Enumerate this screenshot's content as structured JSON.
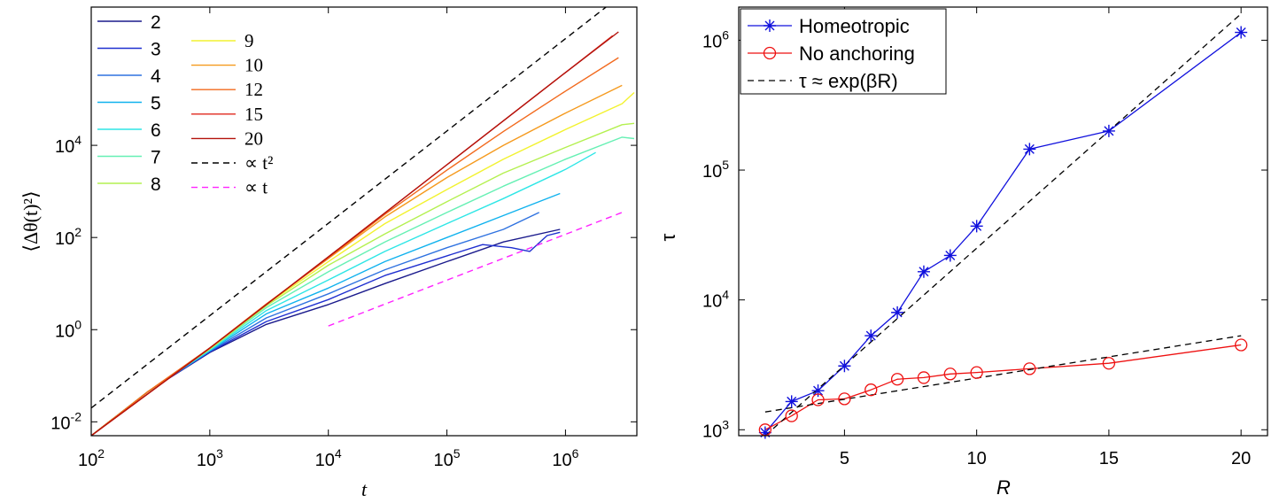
{
  "chart_data": [
    {
      "type": "line",
      "xlabel": "t",
      "ylabel": "⟨Δθ(t)²⟩",
      "xscale": "log",
      "yscale": "log",
      "xlim": [
        100,
        4000000
      ],
      "ylim": [
        0.005,
        10000000
      ],
      "x_ticks": [
        {
          "value": 100,
          "base": "10",
          "exp": "2"
        },
        {
          "value": 1000,
          "base": "10",
          "exp": "3"
        },
        {
          "value": 10000,
          "base": "10",
          "exp": "4"
        },
        {
          "value": 100000,
          "base": "10",
          "exp": "5"
        },
        {
          "value": 1000000,
          "base": "10",
          "exp": "6"
        }
      ],
      "y_ticks": [
        {
          "value": 0.01,
          "base": "10",
          "exp": "-2"
        },
        {
          "value": 1,
          "base": "10",
          "exp": "0"
        },
        {
          "value": 100,
          "base": "10",
          "exp": "2"
        },
        {
          "value": 10000,
          "base": "10",
          "exp": "4"
        }
      ],
      "legend_placement": "top-left",
      "grid": false,
      "series": [
        {
          "name": "2",
          "color": "#1a1a8c",
          "x": [
            100,
            300,
            1000,
            3000,
            10000,
            30000,
            100000,
            300000,
            900000
          ],
          "y": [
            0.005,
            0.045,
            0.32,
            1.3,
            3.5,
            10,
            30,
            80,
            150
          ]
        },
        {
          "name": "3",
          "color": "#1f2fd0",
          "x": [
            100,
            300,
            1000,
            3000,
            10000,
            30000,
            100000,
            200000,
            350000,
            500000,
            700000,
            900000
          ],
          "y": [
            0.005,
            0.045,
            0.33,
            1.5,
            4.5,
            15,
            40,
            70,
            60,
            50,
            110,
            130
          ]
        },
        {
          "name": "4",
          "color": "#2f72e0",
          "x": [
            100,
            300,
            1000,
            3000,
            10000,
            30000,
            100000,
            300000,
            600000
          ],
          "y": [
            0.005,
            0.045,
            0.34,
            1.8,
            6,
            20,
            60,
            150,
            350
          ]
        },
        {
          "name": "5",
          "color": "#10b2ee",
          "x": [
            100,
            300,
            1000,
            3000,
            10000,
            30000,
            100000,
            300000,
            900000
          ],
          "y": [
            0.005,
            0.045,
            0.35,
            2.2,
            8,
            30,
            100,
            300,
            900
          ]
        },
        {
          "name": "6",
          "color": "#2ee6e6",
          "x": [
            100,
            300,
            1000,
            3000,
            10000,
            30000,
            100000,
            300000,
            1000000,
            1800000
          ],
          "y": [
            0.005,
            0.045,
            0.36,
            2.6,
            12,
            50,
            200,
            700,
            3000,
            7000
          ]
        },
        {
          "name": "7",
          "color": "#66f0b4",
          "x": [
            100,
            300,
            1000,
            3000,
            10000,
            30000,
            100000,
            300000,
            1000000,
            3000000,
            3800000
          ],
          "y": [
            0.005,
            0.045,
            0.37,
            3,
            18,
            80,
            350,
            1300,
            5000,
            15000,
            14000
          ]
        },
        {
          "name": "8",
          "color": "#b4f050",
          "x": [
            100,
            300,
            1000,
            3000,
            10000,
            30000,
            100000,
            300000,
            1000000,
            3000000,
            3800000
          ],
          "y": [
            0.005,
            0.045,
            0.38,
            3.3,
            25,
            120,
            600,
            2500,
            9000,
            28000,
            30000
          ]
        },
        {
          "name": "9",
          "color": "#f2f230",
          "x": [
            100,
            300,
            1000,
            3000,
            10000,
            30000,
            100000,
            300000,
            1000000,
            3000000,
            3800000
          ],
          "y": [
            0.005,
            0.045,
            0.39,
            3.5,
            30,
            200,
            1100,
            5000,
            22000,
            80000,
            140000
          ]
        },
        {
          "name": "10",
          "color": "#f59a1e",
          "x": [
            100,
            300,
            1000,
            3000,
            10000,
            30000,
            100000,
            300000,
            1000000,
            3000000
          ],
          "y": [
            0.005,
            0.045,
            0.4,
            3.6,
            35,
            280,
            2000,
            10000,
            50000,
            200000
          ]
        },
        {
          "name": "12",
          "color": "#f26a1e",
          "x": [
            100,
            300,
            1000,
            3000,
            10000,
            30000,
            100000,
            300000,
            1000000,
            2800000
          ],
          "y": [
            0.005,
            0.045,
            0.4,
            3.6,
            36,
            320,
            2900,
            20000,
            150000,
            800000
          ]
        },
        {
          "name": "15",
          "color": "#e02a1e",
          "x": [
            100,
            1000,
            10000,
            100000,
            1000000,
            2500000
          ],
          "y": [
            0.005,
            0.4,
            38,
            3800,
            380000,
            2400000
          ]
        },
        {
          "name": "20",
          "color": "#b3120c",
          "x": [
            100,
            1000,
            10000,
            100000,
            1000000,
            2800000
          ],
          "y": [
            0.005,
            0.4,
            38,
            3800,
            380000,
            2900000
          ]
        },
        {
          "name": "∝ t²",
          "color": "#000000",
          "dash": "dashed",
          "x": [
            100,
            2200000
          ],
          "y": [
            0.02,
            10000000
          ]
        },
        {
          "name": "∝ t",
          "color": "#ff22ff",
          "dash": "dashed",
          "x": [
            10000,
            3000000
          ],
          "y": [
            1.2,
            350
          ]
        }
      ]
    },
    {
      "type": "line",
      "xlabel": "R",
      "ylabel": "τ",
      "xscale": "linear",
      "yscale": "log",
      "xlim": [
        1,
        21
      ],
      "ylim": [
        900,
        1800000
      ],
      "x_ticks": [
        5,
        10,
        15,
        20
      ],
      "y_ticks": [
        {
          "value": 1000,
          "base": "10",
          "exp": "3"
        },
        {
          "value": 10000,
          "base": "10",
          "exp": "4"
        },
        {
          "value": 100000,
          "base": "10",
          "exp": "5"
        },
        {
          "value": 1000000,
          "base": "10",
          "exp": "6"
        }
      ],
      "legend_placement": "top-left",
      "grid": false,
      "series": [
        {
          "name": "Homeotropic",
          "color": "#1010dd",
          "marker": "asterisk",
          "x": [
            2,
            3,
            4,
            5,
            6,
            7,
            8,
            9,
            10,
            12,
            15,
            20
          ],
          "y": [
            950,
            1650,
            2000,
            3100,
            5300,
            8000,
            16500,
            22000,
            37000,
            145000,
            200000,
            1150000
          ]
        },
        {
          "name": "No anchoring",
          "color": "#ee1010",
          "marker": "circle",
          "x": [
            2,
            3,
            4,
            5,
            6,
            7,
            8,
            9,
            10,
            12,
            15,
            20
          ],
          "y": [
            1000,
            1280,
            1700,
            1730,
            2030,
            2450,
            2520,
            2690,
            2760,
            2950,
            3250,
            4500
          ]
        },
        {
          "name": "τ ≈ exp(βR)",
          "color": "#000000",
          "dash": "dashed",
          "x": [
            2,
            20
          ],
          "y": [
            900,
            1600000
          ]
        },
        {
          "name": "",
          "color": "#000000",
          "dash": "dashed",
          "x": [
            2,
            20
          ],
          "y": [
            1370,
            5300
          ]
        }
      ]
    }
  ]
}
